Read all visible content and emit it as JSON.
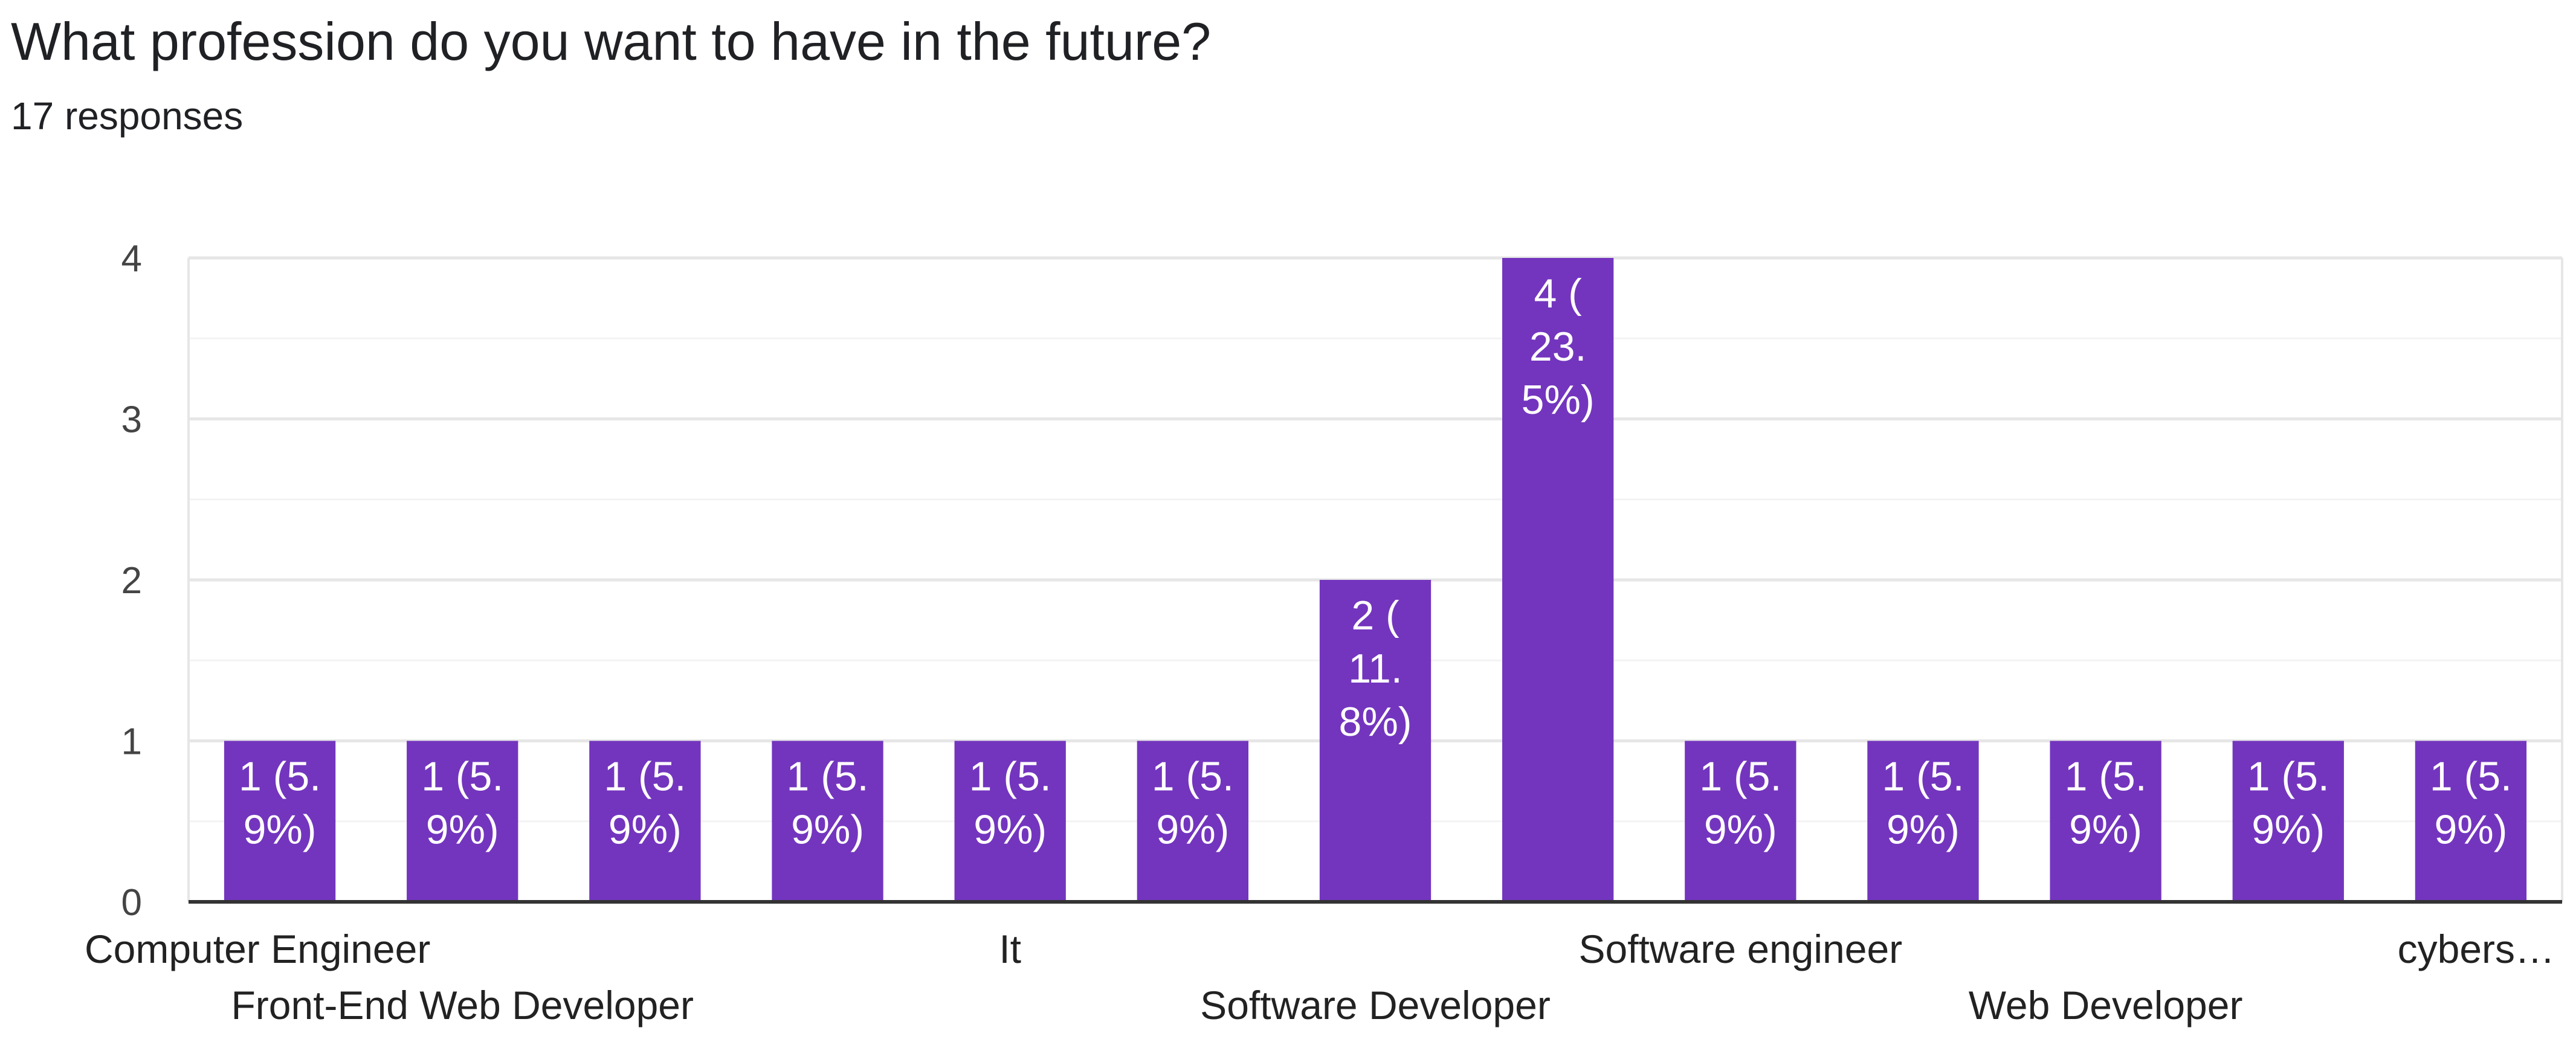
{
  "chart_data": {
    "type": "bar",
    "title": "What profession do you want to have in the future?",
    "subtitle": "17 responses",
    "xlabel": "",
    "ylabel": "",
    "ylim": [
      0,
      4
    ],
    "yticks": [
      0,
      1,
      2,
      3,
      4
    ],
    "grid": true,
    "categories": [
      "Computer Engineer",
      "Front-End Web Developer",
      "",
      "",
      "It",
      "",
      "Software Developer",
      "",
      "Software engineer",
      "",
      "Web Developer",
      "",
      "cybers…"
    ],
    "values": [
      1,
      1,
      1,
      1,
      1,
      1,
      2,
      4,
      1,
      1,
      1,
      1,
      1
    ],
    "data_labels": [
      [
        "1 (5.",
        "9%)"
      ],
      [
        "1 (5.",
        "9%)"
      ],
      [
        "1 (5.",
        "9%)"
      ],
      [
        "1 (5.",
        "9%)"
      ],
      [
        "1 (5.",
        "9%)"
      ],
      [
        "1 (5.",
        "9%)"
      ],
      [
        "2 (",
        "11.",
        "8%)"
      ],
      [
        "4 (",
        "23.",
        "5%)"
      ],
      [
        "1 (5.",
        "9%)"
      ],
      [
        "1 (5.",
        "9%)"
      ],
      [
        "1 (5.",
        "9%)"
      ],
      [
        "1 (5.",
        "9%)"
      ],
      [
        "1 (5.",
        "9%)"
      ]
    ],
    "colors": {
      "bar": "#7335BE",
      "label": "#ffffff",
      "axis": "#333333",
      "grid": "#e6e6e6",
      "minor_grid": "#f3f3f3",
      "tick_text": "#444444"
    }
  }
}
